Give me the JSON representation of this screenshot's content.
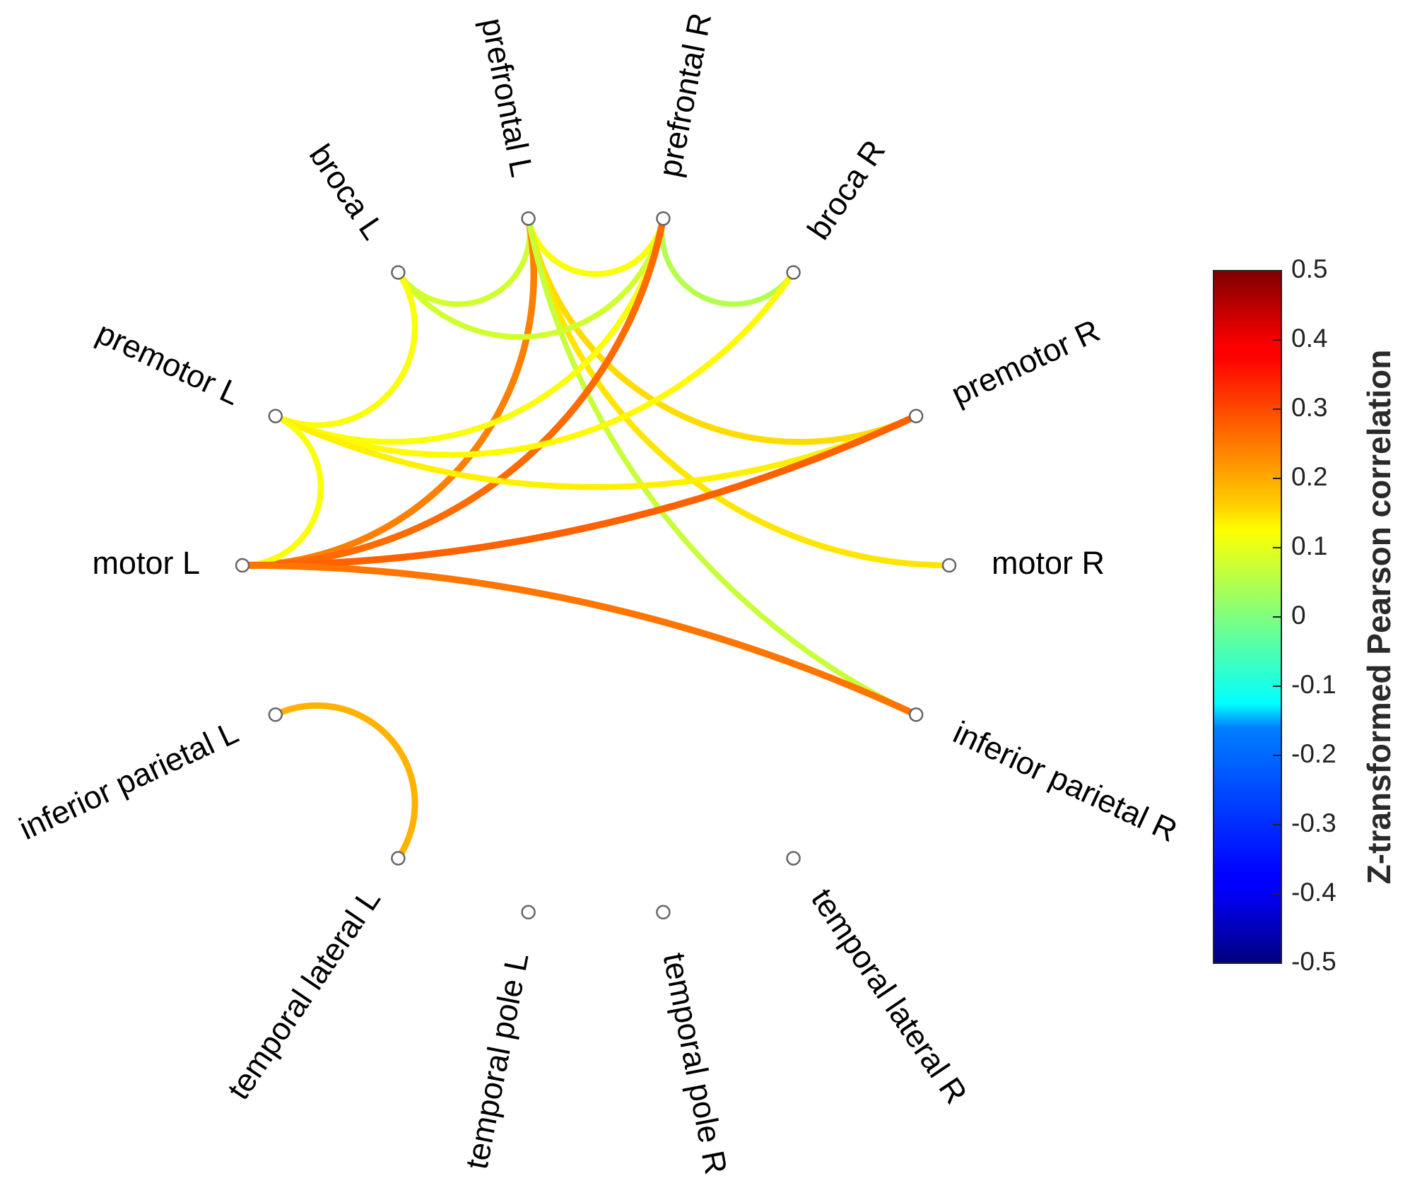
{
  "chart_data": {
    "type": "connectogram",
    "colorbar": {
      "label": "Z-transformed Pearson correlation",
      "min": -0.5,
      "max": 0.5,
      "ticks": [
        "0.5",
        "0.4",
        "0.3",
        "0.2",
        "0.1",
        "0",
        "-0.1",
        "-0.2",
        "-0.3",
        "-0.4",
        "-0.5"
      ],
      "colormap": "jet"
    },
    "nodes": [
      {
        "id": "prefrontal L",
        "label": "prefrontal L",
        "angle": 101
      },
      {
        "id": "prefrontal R",
        "label": "prefrontal R",
        "angle": 79
      },
      {
        "id": "broca R",
        "label": "broca R",
        "angle": 56
      },
      {
        "id": "premotor R",
        "label": "premotor R",
        "angle": 25
      },
      {
        "id": "motor R",
        "label": "motor R",
        "angle": 0
      },
      {
        "id": "inferior parietal R",
        "label": "inferior parietal R",
        "angle": -25
      },
      {
        "id": "temporal lateral R",
        "label": "temporal lateral R",
        "angle": -56
      },
      {
        "id": "temporal pole R",
        "label": "temporal pole R",
        "angle": -79
      },
      {
        "id": "temporal pole L",
        "label": "temporal pole L",
        "angle": -101
      },
      {
        "id": "temporal lateral L",
        "label": "temporal lateral L",
        "angle": -124
      },
      {
        "id": "inferior parietal L",
        "label": "inferior parietal L",
        "angle": -155
      },
      {
        "id": "motor L",
        "label": "motor L",
        "angle": 180
      },
      {
        "id": "premotor L",
        "label": "premotor L",
        "angle": 155
      },
      {
        "id": "broca L",
        "label": "broca L",
        "angle": 124
      }
    ],
    "edges": [
      {
        "source": "prefrontal L",
        "target": "broca L",
        "value": 0.08
      },
      {
        "source": "prefrontal L",
        "target": "prefrontal R",
        "value": 0.12
      },
      {
        "source": "prefrontal L",
        "target": "motor L",
        "value": 0.25
      },
      {
        "source": "prefrontal L",
        "target": "premotor R",
        "value": 0.16
      },
      {
        "source": "prefrontal L",
        "target": "motor R",
        "value": 0.15
      },
      {
        "source": "prefrontal L",
        "target": "inferior parietal R",
        "value": 0.07
      },
      {
        "source": "prefrontal R",
        "target": "broca L",
        "value": 0.08
      },
      {
        "source": "prefrontal R",
        "target": "premotor L",
        "value": 0.12
      },
      {
        "source": "prefrontal R",
        "target": "broca R",
        "value": 0.05
      },
      {
        "source": "prefrontal R",
        "target": "motor L",
        "value": 0.27
      },
      {
        "source": "broca L",
        "target": "premotor L",
        "value": 0.12
      },
      {
        "source": "broca R",
        "target": "premotor L",
        "value": 0.13
      },
      {
        "source": "premotor L",
        "target": "premotor R",
        "value": 0.14
      },
      {
        "source": "premotor L",
        "target": "motor L",
        "value": 0.12
      },
      {
        "source": "motor L",
        "target": "premotor R",
        "value": 0.28
      },
      {
        "source": "motor L",
        "target": "inferior parietal R",
        "value": 0.26
      },
      {
        "source": "inferior parietal L",
        "target": "temporal lateral L",
        "value": 0.2
      }
    ]
  }
}
